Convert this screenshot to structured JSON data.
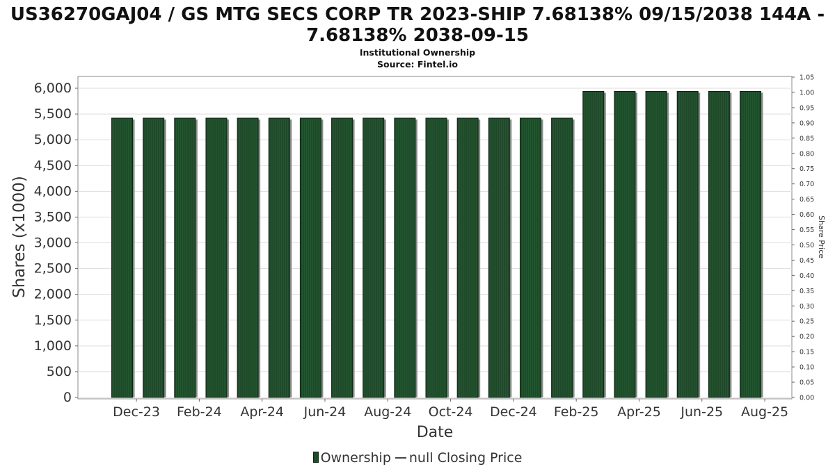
{
  "title_line1": "US36270GAJ04 / GS MTG SECS CORP TR 2023-SHIP 7.68138% 09/15/2038 144A -",
  "title_line2": "7.68138% 2038-09-15",
  "subtitle": "Institutional Ownership",
  "source": "Source: Fintel.io",
  "legend": {
    "ownership": "Ownership",
    "price": "null Closing Price"
  },
  "colors": {
    "bar": "#1f4a2a",
    "bar_shadow": "#8a8a8a",
    "grid": "#dddddd"
  },
  "chart_data": {
    "type": "bar",
    "xlabel": "Date",
    "ylabel": "Shares (x1000)",
    "y2label": "Share Price",
    "ylim": [
      0,
      6000
    ],
    "y_ticks": [
      0,
      500,
      1000,
      1500,
      2000,
      2500,
      3000,
      3500,
      4000,
      4500,
      5000,
      5500,
      6000
    ],
    "y_tick_labels": [
      "0",
      "500",
      "1,000",
      "1,500",
      "2,000",
      "2,500",
      "3,000",
      "3,500",
      "4,000",
      "4,500",
      "5,000",
      "5,500",
      "6,000"
    ],
    "y2lim": [
      0,
      1.05
    ],
    "y2_tick_labels": [
      "0.00",
      "0.05",
      "0.10",
      "0.15",
      "0.20",
      "0.25",
      "0.30",
      "0.35",
      "0.40",
      "0.45",
      "0.50",
      "0.55",
      "0.60",
      "0.65",
      "0.70",
      "0.75",
      "0.80",
      "0.85",
      "0.90",
      "0.95",
      "1.00",
      "1.05"
    ],
    "x_tick_labels": [
      "Dec-23",
      "Feb-24",
      "Apr-24",
      "Jun-24",
      "Aug-24",
      "Oct-24",
      "Dec-24",
      "Feb-25",
      "Apr-25",
      "Jun-25",
      "Aug-25"
    ],
    "grid": true,
    "legend_position": "bottom",
    "series": [
      {
        "name": "Ownership",
        "values": [
          5420,
          5420,
          5420,
          5420,
          5420,
          5420,
          5420,
          5420,
          5420,
          5420,
          5420,
          5420,
          5420,
          5420,
          5420,
          5940,
          5940,
          5940,
          5940,
          5940,
          5940
        ]
      }
    ]
  }
}
